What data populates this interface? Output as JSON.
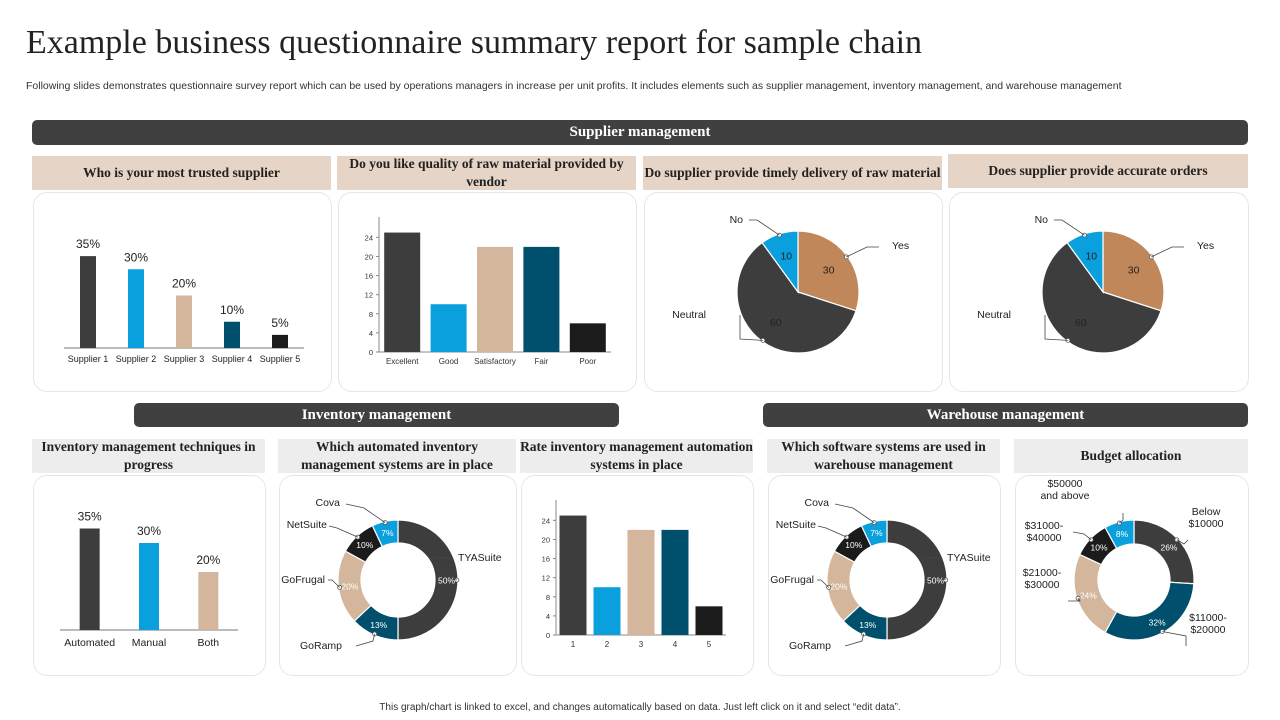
{
  "title": "Example business questionnaire summary report for sample chain",
  "subtitle": "Following slides demonstrates questionnaire survey report which can be used by operations managers in increase per unit profits. It includes elements such as supplier management, inventory management, and warehouse management",
  "sections": {
    "supplier": "Supplier management",
    "inventory": "Inventory management",
    "warehouse": "Warehouse management"
  },
  "questions": {
    "q1": "Who is your most trusted supplier",
    "q2": "Do you like quality of raw material provided by vendor",
    "q3": "Do supplier provide timely delivery of raw material",
    "q4": "Does supplier provide accurate orders",
    "q5": "Inventory management techniques in progress",
    "q6": "Which automated inventory management systems are in place",
    "q7": "Rate inventory management automation systems in place",
    "q8": "Which software systems are used in warehouse management",
    "q9": "Budget allocation"
  },
  "colors": {
    "dark": "#3d3d3d",
    "blue": "#0aa0de",
    "tan": "#d3b69b",
    "navy": "#004f6d",
    "black": "#1b1b1b",
    "brown": "#c0875a"
  },
  "footer": "This graph/chart is linked to excel, and changes automatically based on data. Just left click on it and select “edit data”.",
  "chart_data": [
    {
      "id": "trusted_supplier",
      "type": "bar",
      "title": "Who is your most trusted supplier",
      "categories": [
        "Supplier 1",
        "Supplier 2",
        "Supplier 3",
        "Supplier 4",
        "Supplier 5"
      ],
      "values": [
        35,
        30,
        20,
        10,
        5
      ],
      "labels": [
        "35%",
        "30%",
        "20%",
        "10%",
        "5%"
      ],
      "colors": [
        "#3d3d3d",
        "#0aa0de",
        "#d3b69b",
        "#004f6d",
        "#1b1b1b"
      ],
      "ylim": [
        0,
        40
      ]
    },
    {
      "id": "raw_material_quality",
      "type": "bar",
      "title": "Do you like quality of raw material provided by vendor",
      "categories": [
        "Excellent",
        "Good",
        "Satisfactory",
        "Fair",
        "Poor"
      ],
      "values": [
        25,
        10,
        22,
        22,
        6
      ],
      "colors": [
        "#3d3d3d",
        "#0aa0de",
        "#d3b69b",
        "#004f6d",
        "#1b1b1b"
      ],
      "yticks": [
        0,
        4,
        8,
        12,
        16,
        20,
        24
      ],
      "ylim": [
        0,
        27
      ]
    },
    {
      "id": "timely_delivery",
      "type": "pie",
      "title": "Do supplier provide timely delivery of raw material",
      "slices": [
        {
          "label": "Yes",
          "value": 30,
          "color": "#c0875a"
        },
        {
          "label": "Neutral",
          "value": 60,
          "color": "#3d3d3d"
        },
        {
          "label": "No",
          "value": 10,
          "color": "#0aa0de"
        }
      ]
    },
    {
      "id": "accurate_orders",
      "type": "pie",
      "title": "Does supplier provide accurate orders",
      "slices": [
        {
          "label": "Yes",
          "value": 30,
          "color": "#c0875a"
        },
        {
          "label": "Neutral",
          "value": 60,
          "color": "#3d3d3d"
        },
        {
          "label": "No",
          "value": 10,
          "color": "#0aa0de"
        }
      ]
    },
    {
      "id": "inventory_techniques",
      "type": "bar",
      "title": "Inventory management techniques in progress",
      "categories": [
        "Automated",
        "Manual",
        "Both"
      ],
      "values": [
        35,
        30,
        20
      ],
      "labels": [
        "35%",
        "30%",
        "20%"
      ],
      "colors": [
        "#3d3d3d",
        "#0aa0de",
        "#d3b69b"
      ],
      "ylim": [
        0,
        40
      ]
    },
    {
      "id": "automated_inventory_systems",
      "type": "pie",
      "donut": true,
      "title": "Which automated inventory management systems are in place",
      "slices": [
        {
          "label": "TYASuite",
          "value": 50,
          "display": "50%",
          "color": "#3d3d3d"
        },
        {
          "label": "GoRamp",
          "value": 13,
          "display": "13%",
          "color": "#004f6d"
        },
        {
          "label": "GoFrugal",
          "value": 20,
          "display": "20%",
          "color": "#d3b69b"
        },
        {
          "label": "NetSuite",
          "value": 10,
          "display": "10%",
          "color": "#1b1b1b"
        },
        {
          "label": "Cova",
          "value": 7,
          "display": "7%",
          "color": "#0aa0de"
        }
      ]
    },
    {
      "id": "automation_rating",
      "type": "bar",
      "title": "Rate inventory management automation systems in place",
      "categories": [
        "1",
        "2",
        "3",
        "4",
        "5"
      ],
      "values": [
        25,
        10,
        22,
        22,
        6
      ],
      "colors": [
        "#3d3d3d",
        "#0aa0de",
        "#d3b69b",
        "#004f6d",
        "#1b1b1b"
      ],
      "yticks": [
        0,
        4,
        8,
        12,
        16,
        20,
        24
      ],
      "ylim": [
        0,
        27
      ]
    },
    {
      "id": "warehouse_software",
      "type": "pie",
      "donut": true,
      "title": "Which software systems are used in warehouse management",
      "slices": [
        {
          "label": "TYASuite",
          "value": 50,
          "display": "50%",
          "color": "#3d3d3d"
        },
        {
          "label": "GoRamp",
          "value": 13,
          "display": "13%",
          "color": "#004f6d"
        },
        {
          "label": "GoFrugal",
          "value": 20,
          "display": "20%",
          "color": "#d3b69b"
        },
        {
          "label": "NetSuite",
          "value": 10,
          "display": "10%",
          "color": "#1b1b1b"
        },
        {
          "label": "Cova",
          "value": 7,
          "display": "7%",
          "color": "#0aa0de"
        }
      ]
    },
    {
      "id": "budget_allocation",
      "type": "pie",
      "donut": true,
      "title": "Budget allocation",
      "slices": [
        {
          "label": "Below $10000",
          "value": 26,
          "display": "26%",
          "color": "#3d3d3d"
        },
        {
          "label": "$11000-$20000",
          "value": 32,
          "display": "32%",
          "color": "#004f6d"
        },
        {
          "label": "$21000-$30000",
          "value": 24,
          "display": "24%",
          "color": "#d3b69b"
        },
        {
          "label": "$31000-$40000",
          "value": 10,
          "display": "10%",
          "color": "#1b1b1b"
        },
        {
          "label": "$50000 and above",
          "value": 8,
          "display": "8%",
          "color": "#0aa0de"
        }
      ]
    }
  ]
}
